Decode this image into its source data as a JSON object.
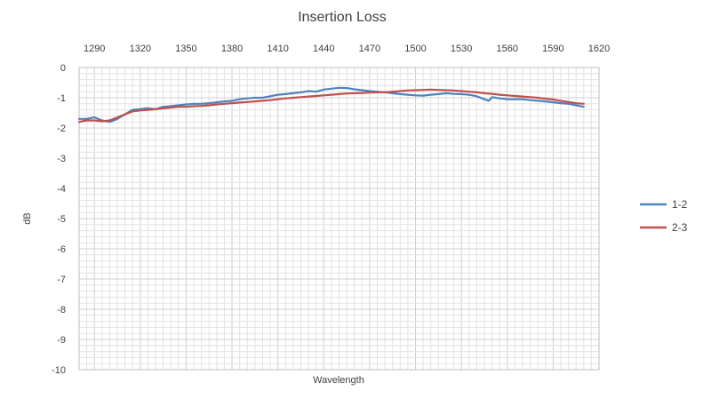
{
  "chart_data": {
    "type": "line",
    "title": "Insertion Loss",
    "xlabel": "Wavelength",
    "ylabel": "dB",
    "xlim": [
      1280,
      1620
    ],
    "ylim": [
      -10,
      0
    ],
    "x_ticks": [
      "1290",
      "1320",
      "1350",
      "1380",
      "1410",
      "1440",
      "1470",
      "1500",
      "1530",
      "1560",
      "1590",
      "1620"
    ],
    "y_ticks": [
      "0",
      "-1",
      "-2",
      "-3",
      "-4",
      "-5",
      "-6",
      "-7",
      "-8",
      "-9",
      "-10"
    ],
    "x_axis_position": "top",
    "grid": true,
    "legend_position": "right",
    "colors": {
      "series_1": "#4f81bd",
      "series_2": "#c0504d",
      "grid": "#e3e3e3",
      "text": "#404040"
    },
    "series": [
      {
        "name": "1-2",
        "x": [
          1280,
          1285,
          1290,
          1295,
          1300,
          1305,
          1310,
          1315,
          1320,
          1325,
          1330,
          1335,
          1340,
          1345,
          1350,
          1355,
          1360,
          1365,
          1370,
          1375,
          1380,
          1385,
          1390,
          1395,
          1400,
          1405,
          1410,
          1415,
          1420,
          1425,
          1430,
          1435,
          1440,
          1445,
          1450,
          1455,
          1460,
          1465,
          1470,
          1475,
          1480,
          1485,
          1490,
          1495,
          1500,
          1505,
          1510,
          1515,
          1520,
          1525,
          1530,
          1535,
          1540,
          1545,
          1548,
          1550,
          1555,
          1560,
          1565,
          1570,
          1575,
          1580,
          1585,
          1590,
          1595,
          1600,
          1605,
          1610
        ],
        "y": [
          -1.7,
          -1.7,
          -1.65,
          -1.75,
          -1.8,
          -1.7,
          -1.55,
          -1.4,
          -1.38,
          -1.35,
          -1.38,
          -1.3,
          -1.28,
          -1.25,
          -1.22,
          -1.2,
          -1.2,
          -1.18,
          -1.15,
          -1.12,
          -1.1,
          -1.05,
          -1.02,
          -1.0,
          -1.0,
          -0.95,
          -0.9,
          -0.88,
          -0.85,
          -0.82,
          -0.78,
          -0.8,
          -0.73,
          -0.7,
          -0.67,
          -0.68,
          -0.72,
          -0.75,
          -0.78,
          -0.8,
          -0.82,
          -0.85,
          -0.88,
          -0.9,
          -0.92,
          -0.93,
          -0.9,
          -0.88,
          -0.85,
          -0.87,
          -0.88,
          -0.9,
          -0.95,
          -1.05,
          -1.1,
          -0.98,
          -1.02,
          -1.05,
          -1.05,
          -1.05,
          -1.08,
          -1.1,
          -1.12,
          -1.15,
          -1.18,
          -1.2,
          -1.25,
          -1.3
        ]
      },
      {
        "name": "2-3",
        "x": [
          1280,
          1285,
          1290,
          1295,
          1300,
          1305,
          1310,
          1315,
          1320,
          1325,
          1330,
          1335,
          1340,
          1345,
          1350,
          1355,
          1360,
          1365,
          1370,
          1375,
          1380,
          1385,
          1390,
          1395,
          1400,
          1405,
          1410,
          1415,
          1420,
          1425,
          1430,
          1435,
          1440,
          1445,
          1450,
          1455,
          1460,
          1465,
          1470,
          1475,
          1480,
          1485,
          1490,
          1495,
          1500,
          1505,
          1510,
          1515,
          1520,
          1525,
          1530,
          1535,
          1540,
          1545,
          1550,
          1555,
          1560,
          1565,
          1570,
          1575,
          1580,
          1585,
          1590,
          1595,
          1600,
          1605,
          1610
        ],
        "y": [
          -1.8,
          -1.75,
          -1.75,
          -1.78,
          -1.75,
          -1.65,
          -1.55,
          -1.45,
          -1.42,
          -1.4,
          -1.38,
          -1.35,
          -1.33,
          -1.3,
          -1.3,
          -1.28,
          -1.27,
          -1.25,
          -1.22,
          -1.2,
          -1.18,
          -1.16,
          -1.14,
          -1.12,
          -1.1,
          -1.08,
          -1.05,
          -1.02,
          -1.0,
          -0.98,
          -0.96,
          -0.94,
          -0.92,
          -0.9,
          -0.88,
          -0.86,
          -0.85,
          -0.84,
          -0.83,
          -0.82,
          -0.82,
          -0.8,
          -0.78,
          -0.76,
          -0.75,
          -0.74,
          -0.73,
          -0.74,
          -0.75,
          -0.76,
          -0.78,
          -0.8,
          -0.82,
          -0.85,
          -0.87,
          -0.9,
          -0.92,
          -0.94,
          -0.96,
          -0.98,
          -1.0,
          -1.03,
          -1.06,
          -1.1,
          -1.14,
          -1.18,
          -1.2
        ]
      }
    ]
  }
}
